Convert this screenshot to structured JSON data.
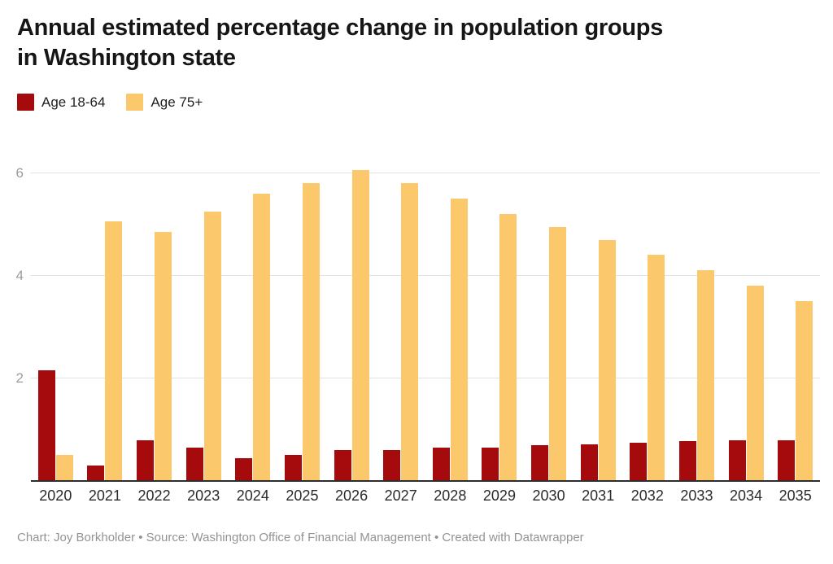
{
  "page": {
    "title_line1": "Annual estimated percentage change in population groups",
    "title_line2": "in Washington state",
    "footer": "Chart: Joy Borkholder • Source: Washington Office of Financial Management • Created with Datawrapper"
  },
  "colors": {
    "age_18_64": "#a50b0c",
    "age_75_plus": "#fbc96b",
    "gridline": "#e3e3e3",
    "axis_line": "#2d2d2d",
    "y_tick_text": "#9c9c9c",
    "x_tick_text": "#2b2b2b",
    "footer_text": "#939393"
  },
  "chart_data": {
    "type": "bar",
    "title": "Annual estimated percentage change in population groups in Washington state",
    "xlabel": "",
    "ylabel": "",
    "categories": [
      "2020",
      "2021",
      "2022",
      "2023",
      "2024",
      "2025",
      "2026",
      "2027",
      "2028",
      "2029",
      "2030",
      "2031",
      "2032",
      "2033",
      "2034",
      "2035"
    ],
    "series": [
      {
        "name": "Age 18-64",
        "color": "#a50b0c",
        "values": [
          2.15,
          0.3,
          0.8,
          0.65,
          0.45,
          0.5,
          0.6,
          0.6,
          0.65,
          0.65,
          0.7,
          0.72,
          0.75,
          0.77,
          0.8,
          0.8
        ]
      },
      {
        "name": "Age 75+",
        "color": "#fbc96b",
        "values": [
          0.5,
          5.05,
          4.85,
          5.25,
          5.6,
          5.8,
          6.05,
          5.8,
          5.5,
          5.2,
          4.95,
          4.7,
          4.4,
          4.1,
          3.8,
          3.5
        ]
      }
    ],
    "y_ticks": [
      2,
      4,
      6
    ],
    "ylim": [
      0,
      6.5
    ],
    "grid": true,
    "legend_position": "top-left"
  }
}
